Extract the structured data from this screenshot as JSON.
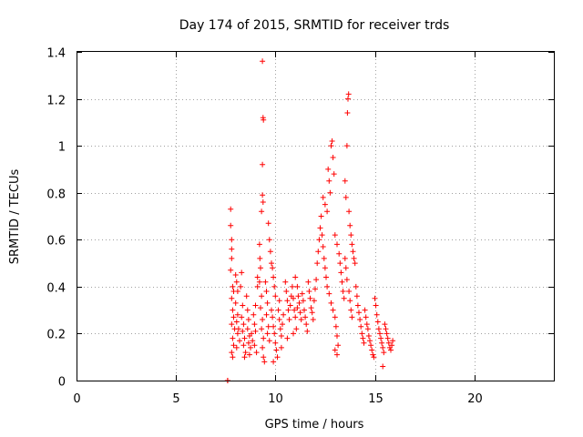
{
  "chart_data": {
    "type": "scatter",
    "title": "Day 174 of 2015, SRMTID for receiver trds",
    "xlabel": "GPS time / hours",
    "ylabel": "SRMTID / TECUs",
    "xlim": [
      0,
      24
    ],
    "ylim": [
      0,
      1.4
    ],
    "xticks": [
      0,
      5,
      10,
      15,
      20
    ],
    "xtick_labels": [
      "0",
      "5",
      "10",
      "15",
      "20"
    ],
    "yticks": [
      0,
      0.2,
      0.4,
      0.6,
      0.8,
      1,
      1.2,
      1.4
    ],
    "ytick_labels": [
      "0",
      "0.2",
      "0.4",
      "0.6",
      "0.8",
      "1",
      "1.2",
      "1.4"
    ],
    "grid": true,
    "marker": "plus",
    "color": "#ff0000",
    "series": [
      {
        "name": "SRMTID",
        "points": [
          [
            7.6,
            0.0
          ],
          [
            7.6,
            0.0
          ],
          [
            7.75,
            0.73
          ],
          [
            7.75,
            0.66
          ],
          [
            7.8,
            0.6
          ],
          [
            7.8,
            0.56
          ],
          [
            7.8,
            0.52
          ],
          [
            7.75,
            0.47
          ],
          [
            7.85,
            0.4
          ],
          [
            7.9,
            0.38
          ],
          [
            7.8,
            0.35
          ],
          [
            7.85,
            0.3
          ],
          [
            7.9,
            0.27
          ],
          [
            7.8,
            0.24
          ],
          [
            7.95,
            0.22
          ],
          [
            7.85,
            0.18
          ],
          [
            7.9,
            0.15
          ],
          [
            7.8,
            0.12
          ],
          [
            7.85,
            0.1
          ],
          [
            8.0,
            0.45
          ],
          [
            8.05,
            0.42
          ],
          [
            8.1,
            0.38
          ],
          [
            8.0,
            0.33
          ],
          [
            8.1,
            0.28
          ],
          [
            8.05,
            0.25
          ],
          [
            8.15,
            0.22
          ],
          [
            8.1,
            0.2
          ],
          [
            8.2,
            0.17
          ],
          [
            8.05,
            0.14
          ],
          [
            8.3,
            0.46
          ],
          [
            8.25,
            0.4
          ],
          [
            8.35,
            0.32
          ],
          [
            8.3,
            0.27
          ],
          [
            8.4,
            0.24
          ],
          [
            8.35,
            0.21
          ],
          [
            8.45,
            0.18
          ],
          [
            8.4,
            0.15
          ],
          [
            8.5,
            0.12
          ],
          [
            8.45,
            0.1
          ],
          [
            8.55,
            0.36
          ],
          [
            8.6,
            0.3
          ],
          [
            8.65,
            0.26
          ],
          [
            8.6,
            0.22
          ],
          [
            8.7,
            0.19
          ],
          [
            8.65,
            0.16
          ],
          [
            8.75,
            0.14
          ],
          [
            8.7,
            0.11
          ],
          [
            8.8,
            0.2
          ],
          [
            8.85,
            0.17
          ],
          [
            8.9,
            0.28
          ],
          [
            8.95,
            0.24
          ],
          [
            9.0,
            0.21
          ],
          [
            8.95,
            0.15
          ],
          [
            9.05,
            0.12
          ],
          [
            9.0,
            0.32
          ],
          [
            9.1,
            0.4
          ],
          [
            9.1,
            0.44
          ],
          [
            9.2,
            0.58
          ],
          [
            9.22,
            0.52
          ],
          [
            9.25,
            0.48
          ],
          [
            9.2,
            0.42
          ],
          [
            9.3,
            0.36
          ],
          [
            9.25,
            0.31
          ],
          [
            9.35,
            0.26
          ],
          [
            9.3,
            0.22
          ],
          [
            9.4,
            0.18
          ],
          [
            9.35,
            0.14
          ],
          [
            9.4,
            0.1
          ],
          [
            9.45,
            0.08
          ],
          [
            9.35,
            0.79
          ],
          [
            9.38,
            0.76
          ],
          [
            9.3,
            0.72
          ],
          [
            9.35,
            0.92
          ],
          [
            9.4,
            1.11
          ],
          [
            9.38,
            1.12
          ],
          [
            9.35,
            1.36
          ],
          [
            9.5,
            0.42
          ],
          [
            9.55,
            0.38
          ],
          [
            9.6,
            0.33
          ],
          [
            9.55,
            0.28
          ],
          [
            9.65,
            0.23
          ],
          [
            9.6,
            0.2
          ],
          [
            9.7,
            0.17
          ],
          [
            9.65,
            0.67
          ],
          [
            9.7,
            0.6
          ],
          [
            9.75,
            0.55
          ],
          [
            9.8,
            0.5
          ],
          [
            9.85,
            0.48
          ],
          [
            9.9,
            0.44
          ],
          [
            9.95,
            0.4
          ],
          [
            10.0,
            0.36
          ],
          [
            9.8,
            0.3
          ],
          [
            9.85,
            0.27
          ],
          [
            9.9,
            0.23
          ],
          [
            9.95,
            0.2
          ],
          [
            10.0,
            0.16
          ],
          [
            10.05,
            0.13
          ],
          [
            10.1,
            0.1
          ],
          [
            9.9,
            0.08
          ],
          [
            10.15,
            0.3
          ],
          [
            10.2,
            0.26
          ],
          [
            10.25,
            0.22
          ],
          [
            10.3,
            0.19
          ],
          [
            10.35,
            0.24
          ],
          [
            10.4,
            0.28
          ],
          [
            10.2,
            0.34
          ],
          [
            10.3,
            0.14
          ],
          [
            10.5,
            0.42
          ],
          [
            10.55,
            0.38
          ],
          [
            10.6,
            0.34
          ],
          [
            10.65,
            0.3
          ],
          [
            10.7,
            0.26
          ],
          [
            10.75,
            0.32
          ],
          [
            10.8,
            0.36
          ],
          [
            10.85,
            0.4
          ],
          [
            10.9,
            0.35
          ],
          [
            10.95,
            0.3
          ],
          [
            11.0,
            0.27
          ],
          [
            11.05,
            0.22
          ],
          [
            11.1,
            0.31
          ],
          [
            11.15,
            0.36
          ],
          [
            11.0,
            0.44
          ],
          [
            11.1,
            0.4
          ],
          [
            10.6,
            0.18
          ],
          [
            10.9,
            0.2
          ],
          [
            11.2,
            0.33
          ],
          [
            11.25,
            0.29
          ],
          [
            11.3,
            0.26
          ],
          [
            11.35,
            0.37
          ],
          [
            11.4,
            0.34
          ],
          [
            11.45,
            0.3
          ],
          [
            11.5,
            0.27
          ],
          [
            11.55,
            0.24
          ],
          [
            11.6,
            0.21
          ],
          [
            11.65,
            0.42
          ],
          [
            11.7,
            0.38
          ],
          [
            11.75,
            0.35
          ],
          [
            11.8,
            0.31
          ],
          [
            11.85,
            0.29
          ],
          [
            11.9,
            0.26
          ],
          [
            11.95,
            0.34
          ],
          [
            12.0,
            0.39
          ],
          [
            12.05,
            0.43
          ],
          [
            12.1,
            0.5
          ],
          [
            12.15,
            0.55
          ],
          [
            12.2,
            0.6
          ],
          [
            12.25,
            0.65
          ],
          [
            12.3,
            0.7
          ],
          [
            12.35,
            0.62
          ],
          [
            12.4,
            0.57
          ],
          [
            12.45,
            0.52
          ],
          [
            12.5,
            0.48
          ],
          [
            12.55,
            0.44
          ],
          [
            12.4,
            0.78
          ],
          [
            12.5,
            0.75
          ],
          [
            12.6,
            0.72
          ],
          [
            12.65,
            0.9
          ],
          [
            12.7,
            0.85
          ],
          [
            12.75,
            0.8
          ],
          [
            12.8,
            1.0
          ],
          [
            12.85,
            1.02
          ],
          [
            12.9,
            0.95
          ],
          [
            12.95,
            0.88
          ],
          [
            12.6,
            0.4
          ],
          [
            12.7,
            0.37
          ],
          [
            12.8,
            0.33
          ],
          [
            12.9,
            0.3
          ],
          [
            13.0,
            0.27
          ],
          [
            13.05,
            0.23
          ],
          [
            13.1,
            0.19
          ],
          [
            13.15,
            0.15
          ],
          [
            13.1,
            0.11
          ],
          [
            13.0,
            0.13
          ],
          [
            13.0,
            0.62
          ],
          [
            13.1,
            0.58
          ],
          [
            13.2,
            0.54
          ],
          [
            13.25,
            0.5
          ],
          [
            13.3,
            0.46
          ],
          [
            13.35,
            0.42
          ],
          [
            13.4,
            0.38
          ],
          [
            13.45,
            0.35
          ],
          [
            13.5,
            0.85
          ],
          [
            13.55,
            0.78
          ],
          [
            13.6,
            1.0
          ],
          [
            13.62,
            1.14
          ],
          [
            13.65,
            1.2
          ],
          [
            13.68,
            1.22
          ],
          [
            13.7,
            0.72
          ],
          [
            13.75,
            0.66
          ],
          [
            13.8,
            0.62
          ],
          [
            13.85,
            0.58
          ],
          [
            13.9,
            0.55
          ],
          [
            13.95,
            0.52
          ],
          [
            14.0,
            0.5
          ],
          [
            13.5,
            0.52
          ],
          [
            13.55,
            0.48
          ],
          [
            13.6,
            0.43
          ],
          [
            13.7,
            0.38
          ],
          [
            13.75,
            0.34
          ],
          [
            13.8,
            0.3
          ],
          [
            13.85,
            0.27
          ],
          [
            14.05,
            0.4
          ],
          [
            14.1,
            0.36
          ],
          [
            14.15,
            0.32
          ],
          [
            14.2,
            0.29
          ],
          [
            14.25,
            0.26
          ],
          [
            14.3,
            0.23
          ],
          [
            14.35,
            0.2
          ],
          [
            14.4,
            0.18
          ],
          [
            14.45,
            0.16
          ],
          [
            14.5,
            0.3
          ],
          [
            14.55,
            0.27
          ],
          [
            14.6,
            0.24
          ],
          [
            14.65,
            0.22
          ],
          [
            14.7,
            0.19
          ],
          [
            14.75,
            0.17
          ],
          [
            14.8,
            0.15
          ],
          [
            14.85,
            0.13
          ],
          [
            14.9,
            0.11
          ],
          [
            14.95,
            0.1
          ],
          [
            15.0,
            0.35
          ],
          [
            15.05,
            0.32
          ],
          [
            15.1,
            0.28
          ],
          [
            15.15,
            0.25
          ],
          [
            15.2,
            0.22
          ],
          [
            15.25,
            0.2
          ],
          [
            15.3,
            0.18
          ],
          [
            15.35,
            0.16
          ],
          [
            15.4,
            0.14
          ],
          [
            15.45,
            0.12
          ],
          [
            15.5,
            0.24
          ],
          [
            15.55,
            0.22
          ],
          [
            15.6,
            0.2
          ],
          [
            15.65,
            0.18
          ],
          [
            15.7,
            0.16
          ],
          [
            15.75,
            0.14
          ],
          [
            15.8,
            0.13
          ],
          [
            15.85,
            0.15
          ],
          [
            15.9,
            0.17
          ],
          [
            15.4,
            0.06
          ]
        ]
      }
    ]
  }
}
